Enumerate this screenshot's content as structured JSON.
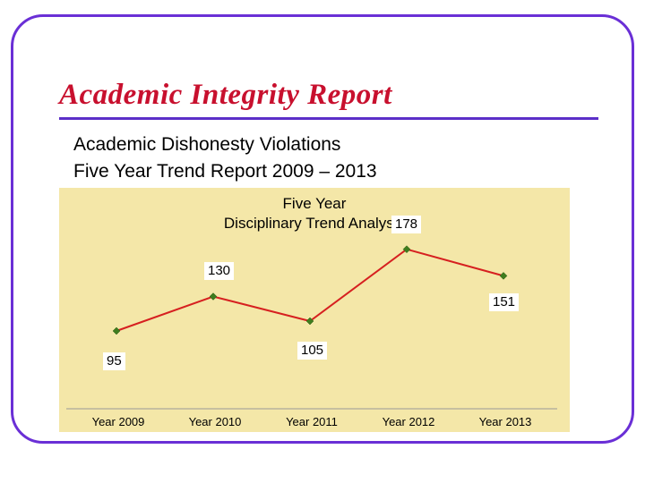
{
  "slide": {
    "title": "Academic Integrity Report",
    "subtitle_line1": "Academic Dishonesty Violations",
    "subtitle_line2": "Five Year Trend Report  2009 – 2013"
  },
  "colors": {
    "frame": "#6a2fd6",
    "title": "#c8102e",
    "chart_background": "#f4e7a8",
    "line": "#d62020",
    "marker": "#3f7d1e"
  },
  "chart_data": {
    "type": "line",
    "title": "Five Year\nDisciplinary Trend Analysis",
    "title_lines": [
      "Five Year",
      "Disciplinary Trend Analysis"
    ],
    "categories": [
      "Year 2009",
      "Year 2010",
      "Year 2011",
      "Year 2012",
      "Year 2013"
    ],
    "series": [
      {
        "values": [
          95,
          130,
          105,
          178,
          151
        ]
      }
    ],
    "data_labels": [
      "95",
      "130",
      "105",
      "178",
      "151"
    ],
    "grid": false,
    "legend": "none"
  }
}
